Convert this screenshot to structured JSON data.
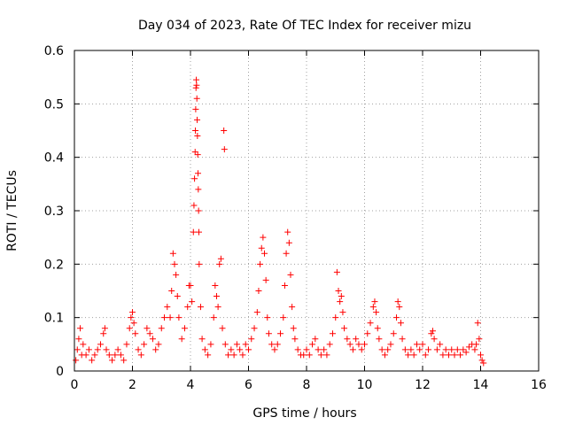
{
  "chart_data": {
    "type": "scatter",
    "title": "Day 034 of 2023, Rate Of TEC Index for receiver mizu",
    "xlabel": "GPS time / hours",
    "ylabel": "ROTI / TECUs",
    "xlim": [
      0,
      16
    ],
    "ylim": [
      0,
      0.6
    ],
    "xticks": [
      "0",
      "2",
      "4",
      "6",
      "8",
      "10",
      "12",
      "14",
      "16"
    ],
    "yticks": [
      "0",
      "0.1",
      "0.2",
      "0.3",
      "0.4",
      "0.5",
      "0.6"
    ],
    "grid": true,
    "marker": "+",
    "color": "#ff0000",
    "series": [
      {
        "points": [
          [
            0.05,
            0.02
          ],
          [
            0.1,
            0.04
          ],
          [
            0.15,
            0.06
          ],
          [
            0.2,
            0.08
          ],
          [
            0.25,
            0.03
          ],
          [
            0.3,
            0.05
          ],
          [
            0.4,
            0.03
          ],
          [
            0.5,
            0.04
          ],
          [
            0.6,
            0.02
          ],
          [
            0.7,
            0.03
          ],
          [
            0.8,
            0.04
          ],
          [
            0.9,
            0.05
          ],
          [
            1.0,
            0.07
          ],
          [
            1.05,
            0.08
          ],
          [
            1.1,
            0.04
          ],
          [
            1.2,
            0.03
          ],
          [
            1.3,
            0.02
          ],
          [
            1.4,
            0.03
          ],
          [
            1.5,
            0.04
          ],
          [
            1.6,
            0.03
          ],
          [
            1.7,
            0.02
          ],
          [
            1.8,
            0.05
          ],
          [
            1.9,
            0.08
          ],
          [
            1.95,
            0.1
          ],
          [
            2.0,
            0.11
          ],
          [
            2.05,
            0.09
          ],
          [
            2.1,
            0.07
          ],
          [
            2.2,
            0.04
          ],
          [
            2.3,
            0.03
          ],
          [
            2.4,
            0.05
          ],
          [
            2.5,
            0.08
          ],
          [
            2.6,
            0.07
          ],
          [
            2.7,
            0.06
          ],
          [
            2.8,
            0.04
          ],
          [
            2.9,
            0.05
          ],
          [
            3.0,
            0.08
          ],
          [
            3.1,
            0.1
          ],
          [
            3.2,
            0.12
          ],
          [
            3.3,
            0.1
          ],
          [
            3.35,
            0.15
          ],
          [
            3.4,
            0.22
          ],
          [
            3.45,
            0.2
          ],
          [
            3.5,
            0.18
          ],
          [
            3.55,
            0.14
          ],
          [
            3.6,
            0.1
          ],
          [
            3.7,
            0.06
          ],
          [
            3.8,
            0.08
          ],
          [
            3.9,
            0.12
          ],
          [
            3.95,
            0.16
          ],
          [
            4.0,
            0.16
          ],
          [
            4.05,
            0.13
          ],
          [
            4.1,
            0.26
          ],
          [
            4.12,
            0.31
          ],
          [
            4.14,
            0.36
          ],
          [
            4.16,
            0.41
          ],
          [
            4.17,
            0.45
          ],
          [
            4.18,
            0.49
          ],
          [
            4.19,
            0.53
          ],
          [
            4.2,
            0.545
          ],
          [
            4.21,
            0.535
          ],
          [
            4.22,
            0.51
          ],
          [
            4.23,
            0.47
          ],
          [
            4.24,
            0.44
          ],
          [
            4.25,
            0.405
          ],
          [
            4.26,
            0.37
          ],
          [
            4.27,
            0.34
          ],
          [
            4.28,
            0.3
          ],
          [
            4.29,
            0.26
          ],
          [
            4.3,
            0.2
          ],
          [
            4.35,
            0.12
          ],
          [
            4.4,
            0.06
          ],
          [
            4.5,
            0.04
          ],
          [
            4.6,
            0.03
          ],
          [
            4.7,
            0.05
          ],
          [
            4.8,
            0.1
          ],
          [
            4.85,
            0.16
          ],
          [
            4.9,
            0.14
          ],
          [
            4.95,
            0.12
          ],
          [
            5.0,
            0.2
          ],
          [
            5.05,
            0.21
          ],
          [
            5.1,
            0.08
          ],
          [
            5.15,
            0.45
          ],
          [
            5.17,
            0.415
          ],
          [
            5.2,
            0.05
          ],
          [
            5.3,
            0.03
          ],
          [
            5.4,
            0.04
          ],
          [
            5.5,
            0.03
          ],
          [
            5.6,
            0.05
          ],
          [
            5.7,
            0.04
          ],
          [
            5.8,
            0.03
          ],
          [
            5.9,
            0.05
          ],
          [
            6.0,
            0.04
          ],
          [
            6.1,
            0.06
          ],
          [
            6.2,
            0.08
          ],
          [
            6.3,
            0.11
          ],
          [
            6.35,
            0.15
          ],
          [
            6.4,
            0.2
          ],
          [
            6.45,
            0.23
          ],
          [
            6.5,
            0.25
          ],
          [
            6.55,
            0.22
          ],
          [
            6.6,
            0.17
          ],
          [
            6.65,
            0.1
          ],
          [
            6.7,
            0.07
          ],
          [
            6.8,
            0.05
          ],
          [
            6.9,
            0.04
          ],
          [
            7.0,
            0.05
          ],
          [
            7.1,
            0.07
          ],
          [
            7.2,
            0.1
          ],
          [
            7.25,
            0.16
          ],
          [
            7.3,
            0.22
          ],
          [
            7.35,
            0.26
          ],
          [
            7.4,
            0.24
          ],
          [
            7.45,
            0.18
          ],
          [
            7.5,
            0.12
          ],
          [
            7.55,
            0.08
          ],
          [
            7.6,
            0.06
          ],
          [
            7.7,
            0.04
          ],
          [
            7.8,
            0.03
          ],
          [
            7.9,
            0.03
          ],
          [
            8.0,
            0.04
          ],
          [
            8.1,
            0.03
          ],
          [
            8.2,
            0.05
          ],
          [
            8.3,
            0.06
          ],
          [
            8.4,
            0.04
          ],
          [
            8.5,
            0.03
          ],
          [
            8.6,
            0.04
          ],
          [
            8.7,
            0.03
          ],
          [
            8.8,
            0.05
          ],
          [
            8.9,
            0.07
          ],
          [
            9.0,
            0.1
          ],
          [
            9.05,
            0.185
          ],
          [
            9.1,
            0.15
          ],
          [
            9.15,
            0.13
          ],
          [
            9.2,
            0.14
          ],
          [
            9.25,
            0.11
          ],
          [
            9.3,
            0.08
          ],
          [
            9.4,
            0.06
          ],
          [
            9.5,
            0.05
          ],
          [
            9.6,
            0.04
          ],
          [
            9.7,
            0.06
          ],
          [
            9.8,
            0.05
          ],
          [
            9.9,
            0.04
          ],
          [
            10.0,
            0.05
          ],
          [
            10.1,
            0.07
          ],
          [
            10.2,
            0.09
          ],
          [
            10.3,
            0.12
          ],
          [
            10.35,
            0.13
          ],
          [
            10.4,
            0.11
          ],
          [
            10.45,
            0.08
          ],
          [
            10.5,
            0.06
          ],
          [
            10.6,
            0.04
          ],
          [
            10.7,
            0.03
          ],
          [
            10.8,
            0.04
          ],
          [
            10.9,
            0.05
          ],
          [
            11.0,
            0.07
          ],
          [
            11.1,
            0.1
          ],
          [
            11.15,
            0.13
          ],
          [
            11.2,
            0.12
          ],
          [
            11.25,
            0.09
          ],
          [
            11.3,
            0.06
          ],
          [
            11.4,
            0.04
          ],
          [
            11.5,
            0.03
          ],
          [
            11.6,
            0.04
          ],
          [
            11.7,
            0.03
          ],
          [
            11.8,
            0.05
          ],
          [
            11.9,
            0.04
          ],
          [
            12.0,
            0.05
          ],
          [
            12.1,
            0.03
          ],
          [
            12.2,
            0.04
          ],
          [
            12.3,
            0.07
          ],
          [
            12.35,
            0.075
          ],
          [
            12.4,
            0.06
          ],
          [
            12.5,
            0.04
          ],
          [
            12.6,
            0.05
          ],
          [
            12.7,
            0.03
          ],
          [
            12.8,
            0.04
          ],
          [
            12.9,
            0.03
          ],
          [
            13.0,
            0.04
          ],
          [
            13.1,
            0.03
          ],
          [
            13.2,
            0.04
          ],
          [
            13.3,
            0.03
          ],
          [
            13.4,
            0.04
          ],
          [
            13.5,
            0.035
          ],
          [
            13.6,
            0.045
          ],
          [
            13.7,
            0.05
          ],
          [
            13.8,
            0.04
          ],
          [
            13.85,
            0.05
          ],
          [
            13.9,
            0.09
          ],
          [
            13.95,
            0.06
          ],
          [
            14.0,
            0.03
          ],
          [
            14.05,
            0.02
          ],
          [
            14.1,
            0.015
          ]
        ]
      }
    ]
  }
}
